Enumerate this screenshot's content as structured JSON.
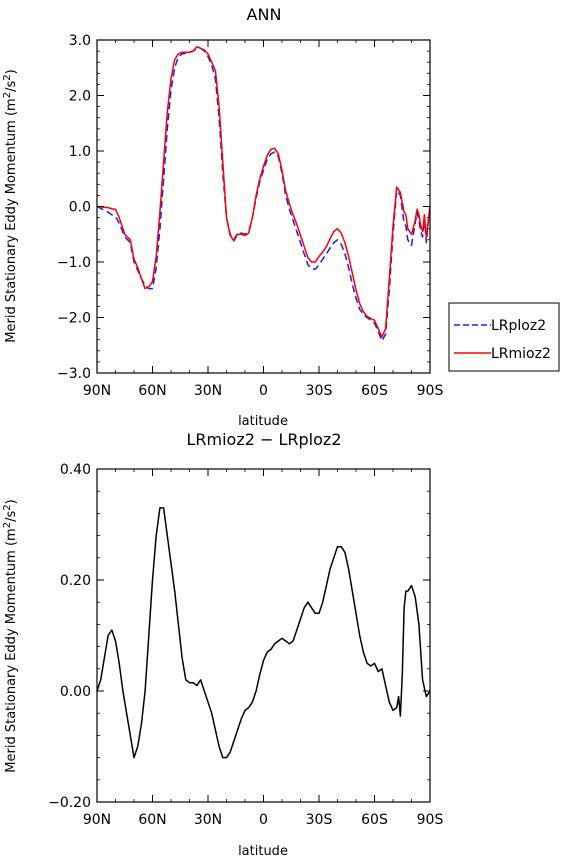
{
  "chart_data": [
    {
      "type": "line",
      "title": "ANN",
      "xlabel": "latitude",
      "ylabel": "Merid Stationary Eddy Momentum (m²/s²)",
      "ylabel_main": "Merid Stationary Eddy Momentum (m",
      "ylabel_sup": "2",
      "ylabel_mid": "/s",
      "ylabel_sup2": "2",
      "ylabel_end": ")",
      "xlim": [
        90,
        -90
      ],
      "ylim": [
        -3.0,
        3.0
      ],
      "xticks": [
        90,
        60,
        30,
        0,
        -30,
        -60,
        -90
      ],
      "xtick_labels": [
        "90N",
        "60N",
        "30N",
        "0",
        "30S",
        "60S",
        "90S"
      ],
      "yticks": [
        -3.0,
        -2.0,
        -1.0,
        0.0,
        1.0,
        2.0,
        3.0
      ],
      "ytick_labels": [
        "−3.0",
        "−2.0",
        "−1.0",
        "0.0",
        "1.0",
        "2.0",
        "3.0"
      ],
      "legend_position": "right, outside plot",
      "series": [
        {
          "name": "LRploz2",
          "color": "#1a1aff",
          "dash": "dashed",
          "x": [
            90,
            84,
            82,
            80,
            78,
            75,
            72,
            70,
            68,
            66,
            64,
            62,
            60,
            58,
            56,
            54,
            52,
            50,
            48,
            46,
            44,
            42,
            40,
            38,
            36,
            34,
            32,
            30,
            28,
            26,
            24,
            22,
            20,
            18,
            16,
            14,
            12,
            10,
            8,
            6,
            4,
            2,
            0,
            -2,
            -4,
            -6,
            -8,
            -10,
            -12,
            -14,
            -16,
            -18,
            -20,
            -22,
            -24,
            -26,
            -28,
            -30,
            -32,
            -34,
            -36,
            -38,
            -40,
            -42,
            -44,
            -46,
            -48,
            -50,
            -52,
            -54,
            -56,
            -58,
            -60,
            -62,
            -64,
            -66,
            -68,
            -70,
            -72,
            -74,
            -76,
            -77,
            -78,
            -80,
            -82,
            -83,
            -84,
            -85,
            -86,
            -87,
            -88,
            -90
          ],
          "y": [
            0.0,
            -0.1,
            -0.15,
            -0.18,
            -0.3,
            -0.55,
            -0.65,
            -1.0,
            -1.15,
            -1.3,
            -1.42,
            -1.48,
            -1.48,
            -1.1,
            -0.4,
            0.5,
            1.4,
            2.1,
            2.5,
            2.7,
            2.75,
            2.76,
            2.78,
            2.8,
            2.85,
            2.85,
            2.8,
            2.7,
            2.55,
            2.3,
            1.6,
            0.6,
            -0.2,
            -0.5,
            -0.6,
            -0.48,
            -0.48,
            -0.5,
            -0.45,
            -0.2,
            0.15,
            0.45,
            0.65,
            0.85,
            0.95,
            0.98,
            0.9,
            0.6,
            0.2,
            -0.05,
            -0.25,
            -0.45,
            -0.65,
            -0.85,
            -1.05,
            -1.12,
            -1.13,
            -1.05,
            -0.95,
            -0.85,
            -0.75,
            -0.65,
            -0.6,
            -0.68,
            -0.85,
            -1.1,
            -1.4,
            -1.65,
            -1.85,
            -1.95,
            -2.0,
            -2.05,
            -2.1,
            -2.25,
            -2.42,
            -2.3,
            -1.5,
            -0.5,
            0.3,
            0.2,
            -0.3,
            -0.35,
            -0.6,
            -0.7,
            -0.3,
            -0.1,
            -0.25,
            -0.45,
            -0.55,
            -0.2,
            -0.65,
            0.02
          ]
        },
        {
          "name": "LRmioz2",
          "color": "#ff0000",
          "dash": "solid",
          "x": [
            90,
            84,
            82,
            80,
            78,
            75,
            72,
            70,
            68,
            66,
            64,
            62,
            60,
            58,
            56,
            54,
            52,
            50,
            48,
            46,
            44,
            42,
            40,
            38,
            36,
            34,
            32,
            30,
            28,
            26,
            24,
            22,
            20,
            18,
            16,
            14,
            12,
            10,
            8,
            6,
            4,
            2,
            0,
            -2,
            -4,
            -6,
            -8,
            -10,
            -12,
            -14,
            -16,
            -18,
            -20,
            -22,
            -24,
            -26,
            -28,
            -30,
            -32,
            -34,
            -36,
            -38,
            -40,
            -42,
            -44,
            -46,
            -48,
            -50,
            -52,
            -54,
            -56,
            -58,
            -60,
            -62,
            -64,
            -66,
            -68,
            -70,
            -72,
            -74,
            -76,
            -77,
            -78,
            -80,
            -82,
            -83,
            -84,
            -85,
            -86,
            -87,
            -88,
            -90
          ],
          "y": [
            0.0,
            -0.02,
            -0.04,
            -0.05,
            -0.2,
            -0.5,
            -0.6,
            -0.95,
            -1.1,
            -1.3,
            -1.48,
            -1.45,
            -1.35,
            -0.9,
            -0.1,
            0.8,
            1.7,
            2.3,
            2.65,
            2.75,
            2.78,
            2.78,
            2.78,
            2.8,
            2.88,
            2.85,
            2.82,
            2.75,
            2.6,
            2.45,
            1.8,
            0.8,
            -0.2,
            -0.52,
            -0.62,
            -0.5,
            -0.5,
            -0.52,
            -0.48,
            -0.2,
            0.2,
            0.5,
            0.72,
            0.92,
            1.03,
            1.05,
            0.95,
            0.65,
            0.28,
            0.05,
            -0.15,
            -0.32,
            -0.52,
            -0.72,
            -0.92,
            -1.0,
            -1.0,
            -0.9,
            -0.82,
            -0.72,
            -0.58,
            -0.45,
            -0.4,
            -0.48,
            -0.65,
            -0.9,
            -1.2,
            -1.5,
            -1.75,
            -1.9,
            -1.98,
            -2.02,
            -2.05,
            -2.2,
            -2.35,
            -2.2,
            -1.3,
            -0.35,
            0.35,
            0.25,
            -0.1,
            -0.15,
            -0.4,
            -0.5,
            -0.25,
            -0.05,
            -0.15,
            -0.35,
            -0.45,
            -0.15,
            -0.55,
            0.0
          ]
        }
      ]
    },
    {
      "type": "line",
      "title": "LRmioz2 − LRploz2",
      "xlabel": "latitude",
      "ylabel": "Merid Stationary Eddy Momentum (m²/s²)",
      "ylabel_main": "Merid Stationary Eddy Momentum (m",
      "ylabel_sup": "2",
      "ylabel_mid": "/s",
      "ylabel_sup2": "2",
      "ylabel_end": ")",
      "xlim": [
        90,
        -90
      ],
      "ylim": [
        -0.2,
        0.4
      ],
      "xticks": [
        90,
        60,
        30,
        0,
        -30,
        -60,
        -90
      ],
      "xtick_labels": [
        "90N",
        "60N",
        "30N",
        "0",
        "30S",
        "60S",
        "90S"
      ],
      "yticks": [
        -0.2,
        0.0,
        0.2,
        0.4
      ],
      "ytick_labels": [
        "−0.20",
        "0.00",
        "0.20",
        "0.40"
      ],
      "series": [
        {
          "name": "",
          "color": "#000000",
          "dash": "solid",
          "x": [
            90,
            88,
            86,
            84,
            82,
            80,
            78,
            76,
            74,
            72,
            70,
            68,
            66,
            64,
            62,
            60,
            58,
            56,
            54,
            52,
            50,
            48,
            46,
            44,
            42,
            40,
            38,
            36,
            34,
            32,
            30,
            28,
            26,
            24,
            22,
            20,
            18,
            16,
            14,
            12,
            10,
            8,
            6,
            4,
            2,
            0,
            -2,
            -4,
            -6,
            -8,
            -10,
            -12,
            -14,
            -16,
            -18,
            -20,
            -22,
            -24,
            -26,
            -28,
            -30,
            -32,
            -34,
            -36,
            -38,
            -40,
            -42,
            -44,
            -46,
            -48,
            -50,
            -52,
            -54,
            -56,
            -58,
            -60,
            -62,
            -64,
            -66,
            -68,
            -70,
            -72,
            -73,
            -74,
            -75,
            -76,
            -77,
            -78,
            -80,
            -82,
            -84,
            -86,
            -88,
            -90
          ],
          "y": [
            0.0,
            0.02,
            0.06,
            0.1,
            0.11,
            0.09,
            0.05,
            0.0,
            -0.04,
            -0.08,
            -0.12,
            -0.1,
            -0.06,
            0.0,
            0.1,
            0.2,
            0.28,
            0.33,
            0.33,
            0.28,
            0.23,
            0.18,
            0.12,
            0.06,
            0.02,
            0.015,
            0.015,
            0.01,
            0.02,
            0.0,
            -0.02,
            -0.04,
            -0.07,
            -0.1,
            -0.12,
            -0.12,
            -0.11,
            -0.09,
            -0.07,
            -0.05,
            -0.035,
            -0.03,
            -0.02,
            0.0,
            0.03,
            0.055,
            0.07,
            0.075,
            0.085,
            0.09,
            0.095,
            0.09,
            0.085,
            0.09,
            0.11,
            0.13,
            0.15,
            0.16,
            0.15,
            0.14,
            0.14,
            0.16,
            0.19,
            0.22,
            0.24,
            0.26,
            0.26,
            0.25,
            0.22,
            0.18,
            0.14,
            0.1,
            0.07,
            0.05,
            0.045,
            0.05,
            0.035,
            0.04,
            0.01,
            -0.02,
            -0.035,
            -0.03,
            -0.01,
            -0.045,
            0.03,
            0.15,
            0.18,
            0.18,
            0.19,
            0.17,
            0.12,
            0.02,
            -0.01,
            0.0
          ]
        }
      ]
    }
  ]
}
